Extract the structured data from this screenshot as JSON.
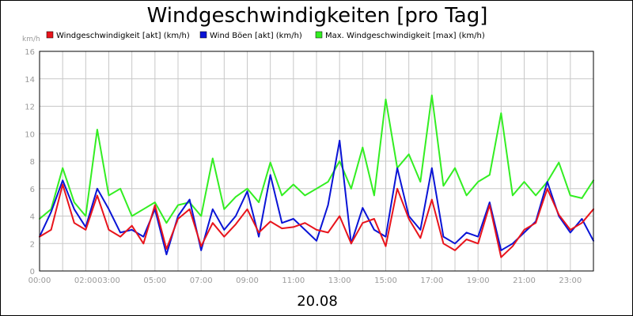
{
  "chart_data": {
    "type": "line",
    "title": "Windgeschwindigkeiten [pro Tag]",
    "ylabel": "km/h",
    "xlabel": "20.08",
    "ylim": [
      0,
      16
    ],
    "xlim": [
      0,
      24
    ],
    "y_ticks": [
      "0",
      "2",
      "4",
      "6",
      "8",
      "10",
      "12",
      "14",
      "16"
    ],
    "x_ticks": [
      {
        "t": 0,
        "label": "00:00"
      },
      {
        "t": 2,
        "label": "02:00"
      },
      {
        "t": 3,
        "label": "03:00"
      },
      {
        "t": 5,
        "label": "05:00"
      },
      {
        "t": 7,
        "label": "07:00"
      },
      {
        "t": 9,
        "label": "09:00"
      },
      {
        "t": 11,
        "label": "11:00"
      },
      {
        "t": 13,
        "label": "13:00"
      },
      {
        "t": 15,
        "label": "15:00"
      },
      {
        "t": 17,
        "label": "17:00"
      },
      {
        "t": 19,
        "label": "19:00"
      },
      {
        "t": 21,
        "label": "21:00"
      },
      {
        "t": 23,
        "label": "23:00"
      }
    ],
    "grid": true,
    "legend_position": "top",
    "x": [
      0,
      0.5,
      1,
      1.5,
      2,
      2.5,
      3,
      3.5,
      4,
      4.5,
      5,
      5.5,
      6,
      6.5,
      7,
      7.5,
      8,
      8.5,
      9,
      9.5,
      10,
      10.5,
      11,
      11.5,
      12,
      12.5,
      13,
      13.5,
      14,
      14.5,
      15,
      15.5,
      16,
      16.5,
      17,
      17.5,
      18,
      18.5,
      19,
      19.5,
      20,
      20.5,
      21,
      21.5,
      22,
      22.5,
      23,
      23.5,
      24
    ],
    "series": [
      {
        "name": "Windgeschwindigkeit [akt] (km/h)",
        "color": "#e8141c",
        "values": [
          2.5,
          3.0,
          6.3,
          3.5,
          3.0,
          5.5,
          3.0,
          2.5,
          3.3,
          2.0,
          4.8,
          1.6,
          3.8,
          4.5,
          1.8,
          3.5,
          2.5,
          3.4,
          4.5,
          2.8,
          3.6,
          3.1,
          3.2,
          3.5,
          3.0,
          2.8,
          4.0,
          2.0,
          3.5,
          3.8,
          1.8,
          6.0,
          3.8,
          2.4,
          5.2,
          2.0,
          1.5,
          2.3,
          2.0,
          4.8,
          1.0,
          1.8,
          3.0,
          3.5,
          6.0,
          4.1,
          3.0,
          3.5,
          4.5
        ]
      },
      {
        "name": "Wind Böen [akt] (km/h)",
        "color": "#0a14d6",
        "values": [
          2.5,
          4.3,
          6.6,
          4.5,
          3.2,
          6.0,
          4.5,
          2.8,
          3.0,
          2.5,
          4.5,
          1.2,
          4.0,
          5.2,
          1.5,
          4.5,
          3.0,
          4.0,
          5.8,
          2.5,
          7.0,
          3.5,
          3.8,
          3.0,
          2.2,
          4.8,
          9.5,
          2.0,
          4.6,
          3.0,
          2.5,
          7.5,
          4.0,
          3.0,
          7.5,
          2.5,
          2.0,
          2.8,
          2.5,
          5.0,
          1.5,
          2.0,
          2.8,
          3.6,
          6.5,
          4.0,
          2.8,
          3.8,
          2.2
        ]
      },
      {
        "name": "Max. Windgeschwindigkeit [max] (km/h)",
        "color": "#33ee22",
        "values": [
          3.8,
          4.5,
          7.5,
          5.0,
          4.0,
          10.3,
          5.5,
          6.0,
          4.0,
          4.5,
          5.0,
          3.5,
          4.8,
          5.0,
          4.0,
          8.2,
          4.5,
          5.4,
          6.0,
          5.0,
          7.9,
          5.5,
          6.3,
          5.5,
          6.0,
          6.5,
          8.0,
          6.0,
          9.0,
          5.5,
          12.5,
          7.5,
          8.5,
          6.5,
          12.8,
          6.2,
          7.5,
          5.5,
          6.5,
          7.0,
          11.5,
          5.5,
          6.5,
          5.5,
          6.5,
          7.9,
          5.5,
          5.3,
          6.6
        ]
      }
    ],
    "date_label": "20.08"
  }
}
